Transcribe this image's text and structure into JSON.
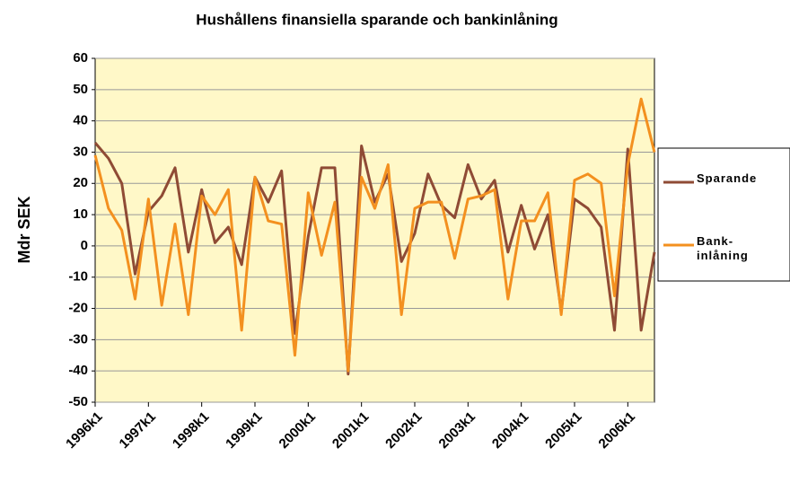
{
  "chart_data": {
    "type": "line",
    "title": "Hushållens finansiella sparande och bankinlåning",
    "y_label": "Mdr SEK",
    "categories": [
      "1996k1",
      null,
      null,
      null,
      "1997k1",
      null,
      null,
      null,
      "1998k1",
      null,
      null,
      null,
      "1999k1",
      null,
      null,
      null,
      "2000k1",
      null,
      null,
      null,
      "2001k1",
      null,
      null,
      null,
      "2002k1",
      null,
      null,
      null,
      "2003k1",
      null,
      null,
      null,
      "2004k1",
      null,
      null,
      null,
      "2005k1",
      null,
      null,
      null,
      "2006k1",
      null,
      null
    ],
    "series": [
      {
        "name": "Sparande",
        "color": "#8f4b35",
        "values": [
          33,
          28,
          20,
          -9,
          11,
          16,
          25,
          -2,
          18,
          1,
          6,
          -6,
          22,
          14,
          24,
          -28,
          3,
          25,
          25,
          -41,
          32,
          14,
          23,
          -5,
          4,
          23,
          13,
          9,
          26,
          15,
          21,
          -2,
          13,
          -1,
          10,
          -21,
          15,
          12,
          6,
          -27,
          31,
          -27,
          -2
        ]
      },
      {
        "name": "Bank-inlåning",
        "color": "#f3901f",
        "values": [
          29,
          12,
          5,
          -17,
          15,
          -19,
          7,
          -22,
          16,
          10,
          18,
          -27,
          22,
          8,
          7,
          -35,
          17,
          -3,
          14,
          -40,
          22,
          12,
          26,
          -22,
          12,
          14,
          14,
          -4,
          15,
          16,
          18,
          -17,
          8,
          8,
          17,
          -22,
          21,
          23,
          20,
          -16,
          26,
          47,
          30
        ]
      }
    ],
    "ylim": [
      -50,
      60
    ],
    "yticks": [
      -50,
      -40,
      -30,
      -20,
      -10,
      0,
      10,
      20,
      30,
      40,
      50,
      60
    ],
    "grid": true
  }
}
